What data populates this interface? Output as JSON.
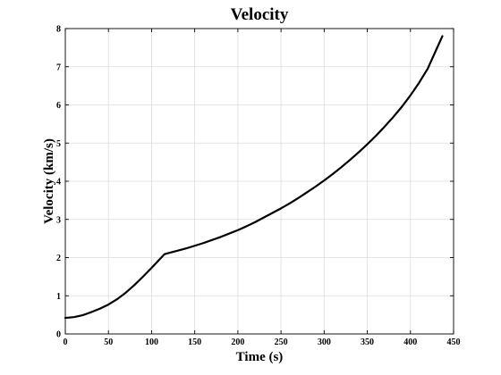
{
  "chart_data": {
    "type": "line",
    "title": "Velocity",
    "xlabel": "Time (s)",
    "ylabel": "Velocity (km/s)",
    "xlim": [
      0,
      450
    ],
    "ylim": [
      0,
      8
    ],
    "xticks": [
      0,
      50,
      100,
      150,
      200,
      250,
      300,
      350,
      400,
      450
    ],
    "yticks": [
      0,
      1,
      2,
      3,
      4,
      5,
      6,
      7,
      8
    ],
    "grid": true,
    "legend": "none",
    "line_color": "#000000",
    "series": [
      {
        "x": [
          0,
          10,
          20,
          30,
          40,
          50,
          60,
          70,
          80,
          90,
          100,
          110,
          115,
          120,
          130,
          140,
          150,
          160,
          170,
          180,
          190,
          200,
          210,
          220,
          230,
          240,
          250,
          260,
          270,
          280,
          290,
          300,
          310,
          320,
          330,
          340,
          350,
          360,
          370,
          380,
          390,
          400,
          410,
          420,
          430,
          437
        ],
        "y": [
          0.42,
          0.44,
          0.49,
          0.57,
          0.66,
          0.77,
          0.91,
          1.08,
          1.28,
          1.5,
          1.73,
          1.97,
          2.09,
          2.12,
          2.18,
          2.24,
          2.31,
          2.38,
          2.46,
          2.54,
          2.63,
          2.72,
          2.82,
          2.93,
          3.05,
          3.17,
          3.29,
          3.42,
          3.56,
          3.71,
          3.86,
          4.02,
          4.19,
          4.37,
          4.56,
          4.76,
          4.97,
          5.19,
          5.43,
          5.68,
          5.95,
          6.25,
          6.58,
          6.95,
          7.45,
          7.8
        ]
      }
    ]
  }
}
